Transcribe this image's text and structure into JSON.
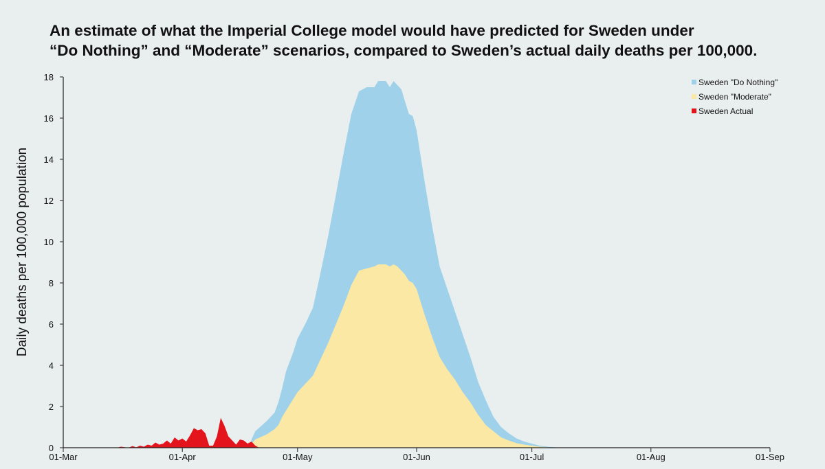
{
  "title": {
    "line1": "An estimate of what the Imperial College model would have predicted for Sweden under",
    "line2": "“Do Nothing” and “Moderate” scenarios, compared to Sweden’s actual daily deaths per 100,000."
  },
  "colors": {
    "background": "#e9eeee",
    "do_nothing": "#9fd2ea",
    "moderate": "#fae8a4",
    "actual": "#e3141c",
    "axis": "#222222"
  },
  "chart_data": {
    "type": "area",
    "title": "An estimate of what the Imperial College model would have predicted for Sweden under “Do Nothing” and “Moderate” scenarios, compared to Sweden’s actual daily deaths per 100,000.",
    "xlabel": "",
    "ylabel": "Daily deaths per 100,000 population",
    "x_unit": "days since 01-Mar",
    "xlim": [
      0,
      184
    ],
    "ylim": [
      0,
      18
    ],
    "yticks": [
      0,
      2,
      4,
      6,
      8,
      10,
      12,
      14,
      16,
      18
    ],
    "xticks": [
      {
        "day": 0,
        "label": "01-Mar"
      },
      {
        "day": 31,
        "label": "01-Apr"
      },
      {
        "day": 61,
        "label": "01-May"
      },
      {
        "day": 92,
        "label": "01-Jun"
      },
      {
        "day": 122,
        "label": "01-Jul"
      },
      {
        "day": 153,
        "label": "01-Aug"
      },
      {
        "day": 184,
        "label": "01-Sep"
      }
    ],
    "legend_position": "top-right",
    "series": [
      {
        "name": "Sweden \"Do Nothing\"",
        "color": "#9fd2ea",
        "x": [
          49,
          50,
          53,
          55,
          56,
          57,
          58,
          59,
          60,
          61,
          63,
          65,
          67,
          69,
          71,
          73,
          75,
          77,
          79,
          81,
          82,
          83,
          84,
          85,
          86,
          87,
          88,
          89,
          90,
          91,
          92,
          93,
          94,
          96,
          98,
          100,
          102,
          104,
          106,
          108,
          110,
          112,
          114,
          116,
          118,
          120,
          122,
          124,
          126,
          128,
          130,
          131,
          133,
          140,
          145
        ],
        "y": [
          0.4,
          0.8,
          1.3,
          1.7,
          2.2,
          2.9,
          3.7,
          4.2,
          4.7,
          5.3,
          6.0,
          6.8,
          8.5,
          10.3,
          12.3,
          14.3,
          16.2,
          17.3,
          17.5,
          17.5,
          17.8,
          17.8,
          17.8,
          17.5,
          17.8,
          17.6,
          17.4,
          16.8,
          16.2,
          16.1,
          15.4,
          14.2,
          13.0,
          10.8,
          8.8,
          7.7,
          6.6,
          5.5,
          4.4,
          3.2,
          2.3,
          1.5,
          1.0,
          0.7,
          0.45,
          0.3,
          0.2,
          0.1,
          0.05,
          0.02,
          0.01,
          0,
          0,
          0,
          0
        ]
      },
      {
        "name": "Sweden \"Moderate\"",
        "color": "#fae8a4",
        "x": [
          49,
          50,
          53,
          55,
          56,
          57,
          58,
          59,
          60,
          61,
          63,
          65,
          67,
          69,
          71,
          73,
          75,
          77,
          79,
          81,
          82,
          83,
          84,
          85,
          86,
          87,
          88,
          89,
          90,
          91,
          92,
          93,
          94,
          96,
          98,
          100,
          102,
          104,
          106,
          108,
          110,
          112,
          114,
          116,
          118,
          120,
          122,
          124,
          126,
          128,
          130,
          131,
          133,
          140,
          145
        ],
        "y": [
          0.2,
          0.4,
          0.65,
          0.9,
          1.1,
          1.5,
          1.8,
          2.1,
          2.4,
          2.7,
          3.1,
          3.5,
          4.3,
          5.1,
          6.0,
          6.9,
          7.9,
          8.6,
          8.7,
          8.8,
          8.9,
          8.9,
          8.9,
          8.8,
          8.9,
          8.8,
          8.6,
          8.4,
          8.1,
          8.0,
          7.7,
          7.1,
          6.5,
          5.4,
          4.4,
          3.8,
          3.3,
          2.7,
          2.2,
          1.6,
          1.1,
          0.8,
          0.5,
          0.35,
          0.22,
          0.15,
          0.1,
          0.05,
          0.02,
          0.01,
          0.005,
          0,
          0,
          0,
          0
        ]
      },
      {
        "name": "Sweden Actual",
        "color": "#e3141c",
        "x": [
          14,
          15,
          17,
          18,
          19,
          20,
          21,
          22,
          23,
          24,
          25,
          26,
          27,
          28,
          29,
          30,
          31,
          32,
          33,
          34,
          35,
          36,
          37,
          38,
          39,
          40,
          41,
          42,
          43,
          44,
          45,
          46,
          47,
          48,
          49,
          50,
          51
        ],
        "y": [
          0,
          0.05,
          0,
          0.08,
          0.02,
          0.1,
          0.05,
          0.15,
          0.1,
          0.25,
          0.15,
          0.2,
          0.35,
          0.2,
          0.5,
          0.35,
          0.45,
          0.3,
          0.6,
          0.95,
          0.85,
          0.9,
          0.7,
          0.1,
          0.1,
          0.55,
          1.45,
          1.05,
          0.55,
          0.35,
          0.15,
          0.4,
          0.35,
          0.2,
          0.3,
          0.1,
          0
        ]
      }
    ]
  }
}
